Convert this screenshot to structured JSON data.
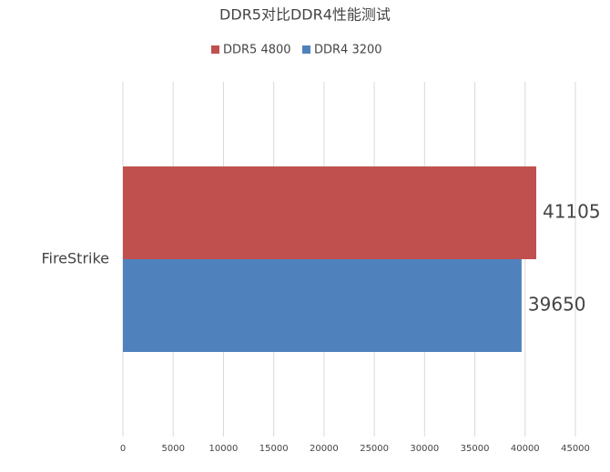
{
  "chart_data": {
    "type": "bar",
    "orientation": "horizontal",
    "title": "DDR5对比DDR4性能测试",
    "categories": [
      "FireStrike"
    ],
    "series": [
      {
        "name": "DDR5 4800",
        "color": "#c0504d",
        "values": [
          41105
        ]
      },
      {
        "name": "DDR4 3200",
        "color": "#4f81bd",
        "values": [
          39650
        ]
      }
    ],
    "xlim": [
      0,
      45000
    ],
    "xticks": [
      0,
      5000,
      10000,
      15000,
      20000,
      25000,
      30000,
      35000,
      40000,
      45000
    ],
    "grid": true,
    "legend": "top",
    "data_labels": true
  }
}
